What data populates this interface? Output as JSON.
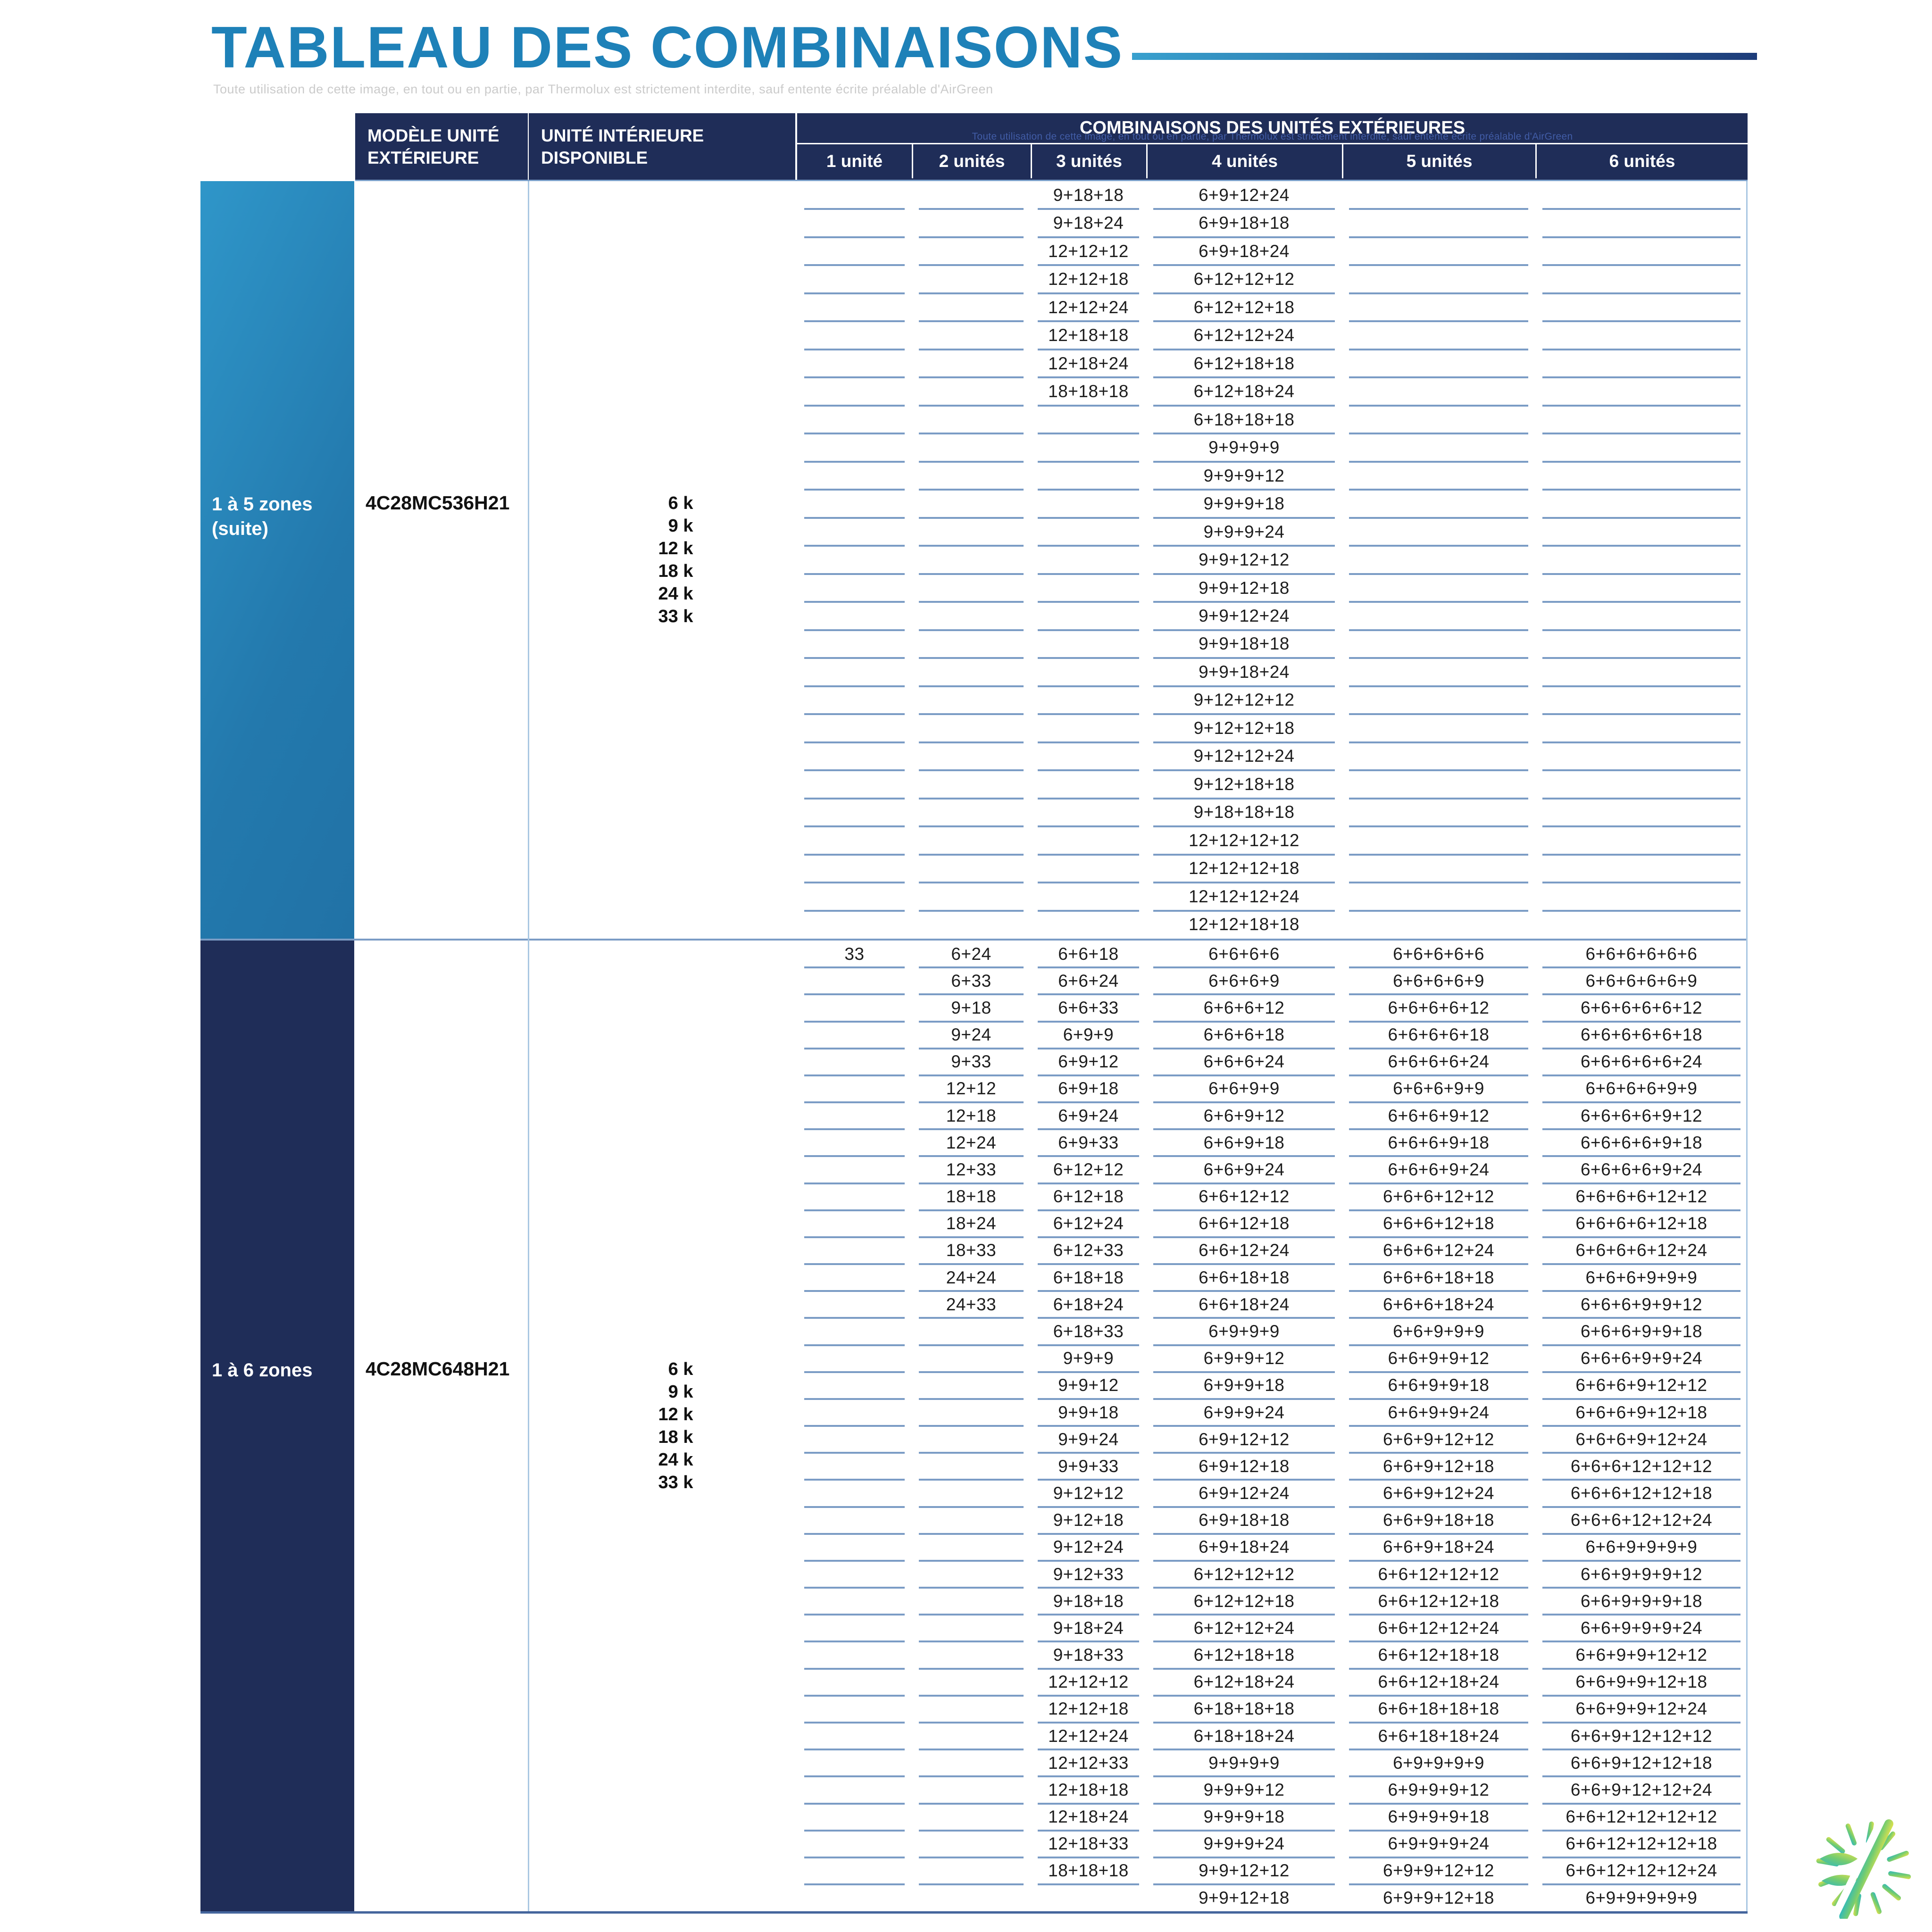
{
  "title": "TABLEAU DES COMBINAISONS",
  "watermark": "Toute utilisation de cette image, en tout ou en partie, par Thermolux est strictement interdite, sauf entente écrite préalable d'AirGreen",
  "header": {
    "col_model": "MODÈLE UNITÉ EXTÉRIEURE",
    "col_indoor": "UNITÉ INTÉRIEURE DISPONIBLE",
    "col_combos": "COMBINAISONS DES UNITÉS EXTÉRIEURES",
    "unit_cols": [
      "1 unité",
      "2 unités",
      "3 unités",
      "4 unités",
      "5 unités",
      "6 unités"
    ]
  },
  "sections": [
    {
      "zone_label": "1 à 5 zones",
      "zone_sublabel": "(suite)",
      "model": "4C28MC536H21",
      "indoor_units": [
        "6 k",
        "9 k",
        "12 k",
        "18 k",
        "24 k",
        "33 k"
      ],
      "rows": [
        [
          "",
          "",
          "9+18+18",
          "6+9+12+24",
          "",
          ""
        ],
        [
          "",
          "",
          "9+18+24",
          "6+9+18+18",
          "",
          ""
        ],
        [
          "",
          "",
          "12+12+12",
          "6+9+18+24",
          "",
          ""
        ],
        [
          "",
          "",
          "12+12+18",
          "6+12+12+12",
          "",
          ""
        ],
        [
          "",
          "",
          "12+12+24",
          "6+12+12+18",
          "",
          ""
        ],
        [
          "",
          "",
          "12+18+18",
          "6+12+12+24",
          "",
          ""
        ],
        [
          "",
          "",
          "12+18+24",
          "6+12+18+18",
          "",
          ""
        ],
        [
          "",
          "",
          "18+18+18",
          "6+12+18+24",
          "",
          ""
        ],
        [
          "",
          "",
          "",
          "6+18+18+18",
          "",
          ""
        ],
        [
          "",
          "",
          "",
          "9+9+9+9",
          "",
          ""
        ],
        [
          "",
          "",
          "",
          "9+9+9+12",
          "",
          ""
        ],
        [
          "",
          "",
          "",
          "9+9+9+18",
          "",
          ""
        ],
        [
          "",
          "",
          "",
          "9+9+9+24",
          "",
          ""
        ],
        [
          "",
          "",
          "",
          "9+9+12+12",
          "",
          ""
        ],
        [
          "",
          "",
          "",
          "9+9+12+18",
          "",
          ""
        ],
        [
          "",
          "",
          "",
          "9+9+12+24",
          "",
          ""
        ],
        [
          "",
          "",
          "",
          "9+9+18+18",
          "",
          ""
        ],
        [
          "",
          "",
          "",
          "9+9+18+24",
          "",
          ""
        ],
        [
          "",
          "",
          "",
          "9+12+12+12",
          "",
          ""
        ],
        [
          "",
          "",
          "",
          "9+12+12+18",
          "",
          ""
        ],
        [
          "",
          "",
          "",
          "9+12+12+24",
          "",
          ""
        ],
        [
          "",
          "",
          "",
          "9+12+18+18",
          "",
          ""
        ],
        [
          "",
          "",
          "",
          "9+18+18+18",
          "",
          ""
        ],
        [
          "",
          "",
          "",
          "12+12+12+12",
          "",
          ""
        ],
        [
          "",
          "",
          "",
          "12+12+12+18",
          "",
          ""
        ],
        [
          "",
          "",
          "",
          "12+12+12+24",
          "",
          ""
        ],
        [
          "",
          "",
          "",
          "12+12+18+18",
          "",
          ""
        ]
      ]
    },
    {
      "zone_label": "1 à 6 zones",
      "zone_sublabel": "",
      "model": "4C28MC648H21",
      "indoor_units": [
        "6 k",
        "9 k",
        "12 k",
        "18 k",
        "24 k",
        "33 k"
      ],
      "rows": [
        [
          "33",
          "6+24",
          "6+6+18",
          "6+6+6+6",
          "6+6+6+6+6",
          "6+6+6+6+6+6"
        ],
        [
          "",
          "6+33",
          "6+6+24",
          "6+6+6+9",
          "6+6+6+6+9",
          "6+6+6+6+6+9"
        ],
        [
          "",
          "9+18",
          "6+6+33",
          "6+6+6+12",
          "6+6+6+6+12",
          "6+6+6+6+6+12"
        ],
        [
          "",
          "9+24",
          "6+9+9",
          "6+6+6+18",
          "6+6+6+6+18",
          "6+6+6+6+6+18"
        ],
        [
          "",
          "9+33",
          "6+9+12",
          "6+6+6+24",
          "6+6+6+6+24",
          "6+6+6+6+6+24"
        ],
        [
          "",
          "12+12",
          "6+9+18",
          "6+6+9+9",
          "6+6+6+9+9",
          "6+6+6+6+9+9"
        ],
        [
          "",
          "12+18",
          "6+9+24",
          "6+6+9+12",
          "6+6+6+9+12",
          "6+6+6+6+9+12"
        ],
        [
          "",
          "12+24",
          "6+9+33",
          "6+6+9+18",
          "6+6+6+9+18",
          "6+6+6+6+9+18"
        ],
        [
          "",
          "12+33",
          "6+12+12",
          "6+6+9+24",
          "6+6+6+9+24",
          "6+6+6+6+9+24"
        ],
        [
          "",
          "18+18",
          "6+12+18",
          "6+6+12+12",
          "6+6+6+12+12",
          "6+6+6+6+12+12"
        ],
        [
          "",
          "18+24",
          "6+12+24",
          "6+6+12+18",
          "6+6+6+12+18",
          "6+6+6+6+12+18"
        ],
        [
          "",
          "18+33",
          "6+12+33",
          "6+6+12+24",
          "6+6+6+12+24",
          "6+6+6+6+12+24"
        ],
        [
          "",
          "24+24",
          "6+18+18",
          "6+6+18+18",
          "6+6+6+18+18",
          "6+6+6+9+9+9"
        ],
        [
          "",
          "24+33",
          "6+18+24",
          "6+6+18+24",
          "6+6+6+18+24",
          "6+6+6+9+9+12"
        ],
        [
          "",
          "",
          "6+18+33",
          "6+9+9+9",
          "6+6+9+9+9",
          "6+6+6+9+9+18"
        ],
        [
          "",
          "",
          "9+9+9",
          "6+9+9+12",
          "6+6+9+9+12",
          "6+6+6+9+9+24"
        ],
        [
          "",
          "",
          "9+9+12",
          "6+9+9+18",
          "6+6+9+9+18",
          "6+6+6+9+12+12"
        ],
        [
          "",
          "",
          "9+9+18",
          "6+9+9+24",
          "6+6+9+9+24",
          "6+6+6+9+12+18"
        ],
        [
          "",
          "",
          "9+9+24",
          "6+9+12+12",
          "6+6+9+12+12",
          "6+6+6+9+12+24"
        ],
        [
          "",
          "",
          "9+9+33",
          "6+9+12+18",
          "6+6+9+12+18",
          "6+6+6+12+12+12"
        ],
        [
          "",
          "",
          "9+12+12",
          "6+9+12+24",
          "6+6+9+12+24",
          "6+6+6+12+12+18"
        ],
        [
          "",
          "",
          "9+12+18",
          "6+9+18+18",
          "6+6+9+18+18",
          "6+6+6+12+12+24"
        ],
        [
          "",
          "",
          "9+12+24",
          "6+9+18+24",
          "6+6+9+18+24",
          "6+6+9+9+9+9"
        ],
        [
          "",
          "",
          "9+12+33",
          "6+12+12+12",
          "6+6+12+12+12",
          "6+6+9+9+9+12"
        ],
        [
          "",
          "",
          "9+18+18",
          "6+12+12+18",
          "6+6+12+12+18",
          "6+6+9+9+9+18"
        ],
        [
          "",
          "",
          "9+18+24",
          "6+12+12+24",
          "6+6+12+12+24",
          "6+6+9+9+9+24"
        ],
        [
          "",
          "",
          "9+18+33",
          "6+12+18+18",
          "6+6+12+18+18",
          "6+6+9+9+12+12"
        ],
        [
          "",
          "",
          "12+12+12",
          "6+12+18+24",
          "6+6+12+18+24",
          "6+6+9+9+12+18"
        ],
        [
          "",
          "",
          "12+12+18",
          "6+18+18+18",
          "6+6+18+18+18",
          "6+6+9+9+12+24"
        ],
        [
          "",
          "",
          "12+12+24",
          "6+18+18+24",
          "6+6+18+18+24",
          "6+6+9+12+12+12"
        ],
        [
          "",
          "",
          "12+12+33",
          "9+9+9+9",
          "6+9+9+9+9",
          "6+6+9+12+12+18"
        ],
        [
          "",
          "",
          "12+18+18",
          "9+9+9+12",
          "6+9+9+9+12",
          "6+6+9+12+12+24"
        ],
        [
          "",
          "",
          "12+18+24",
          "9+9+9+18",
          "6+9+9+9+18",
          "6+6+12+12+12+12"
        ],
        [
          "",
          "",
          "12+18+33",
          "9+9+9+24",
          "6+9+9+9+24",
          "6+6+12+12+12+18"
        ],
        [
          "",
          "",
          "18+18+18",
          "9+9+12+12",
          "6+9+9+12+12",
          "6+6+12+12+12+24"
        ],
        [
          "",
          "",
          "",
          "9+9+12+18",
          "6+9+9+12+18",
          "6+9+9+9+9+9"
        ]
      ]
    }
  ],
  "colors": {
    "accent_blue": "#1e81b8",
    "header_navy": "#1f2d58",
    "zone_blue_light": "#2f96c9",
    "zone_blue_dark": "#2172a6",
    "row_line": "#7b9cc5",
    "bottom_border": "#44659c",
    "logo_teal": "#2fb9bd",
    "logo_green": "#74cc70",
    "logo_yellow": "#dfe24c"
  }
}
